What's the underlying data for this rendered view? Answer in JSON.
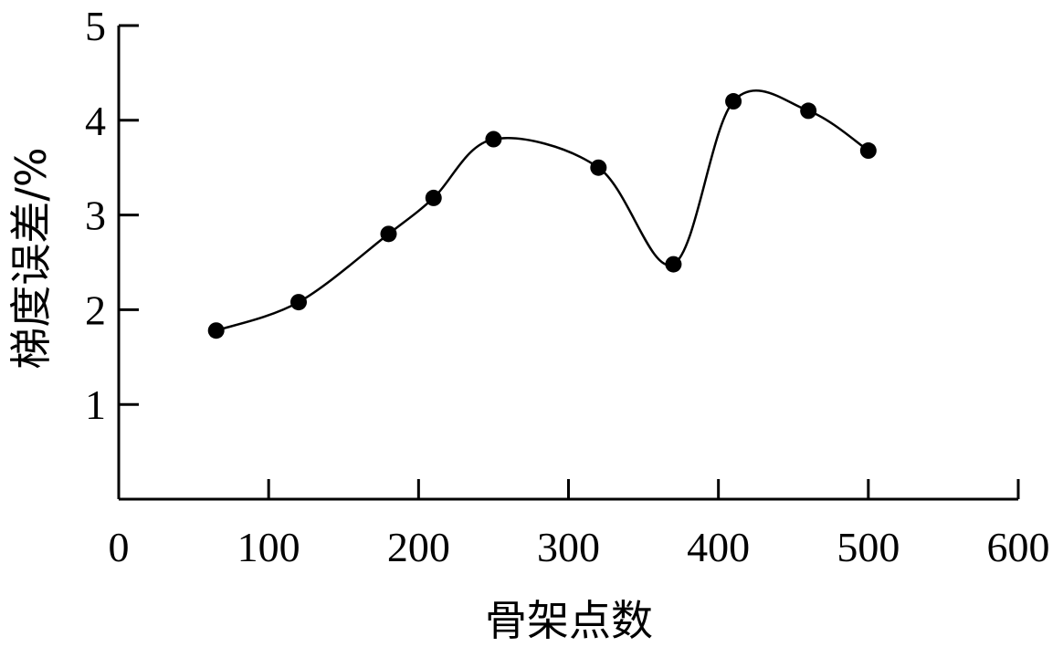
{
  "chart_data": {
    "type": "line",
    "xlabel": "骨架点数",
    "ylabel": "梯度误差/%",
    "xlim": [
      0,
      600
    ],
    "ylim": [
      0,
      5
    ],
    "x_ticks": [
      0,
      100,
      200,
      300,
      400,
      500,
      600
    ],
    "y_ticks": [
      1,
      2,
      3,
      4,
      5
    ],
    "x_tick_labels": [
      "0",
      "100",
      "200",
      "300",
      "400",
      "500",
      "600"
    ],
    "y_tick_labels": [
      "1",
      "2",
      "3",
      "4",
      "5"
    ],
    "grid": false,
    "smooth": true,
    "marker": "filled-circle",
    "series": [
      {
        "x": [
          65,
          120,
          180,
          210,
          250,
          320,
          370,
          410,
          460,
          500
        ],
        "y": [
          1.78,
          2.08,
          2.8,
          3.18,
          3.8,
          3.5,
          2.48,
          4.2,
          4.1,
          3.68
        ]
      }
    ]
  }
}
